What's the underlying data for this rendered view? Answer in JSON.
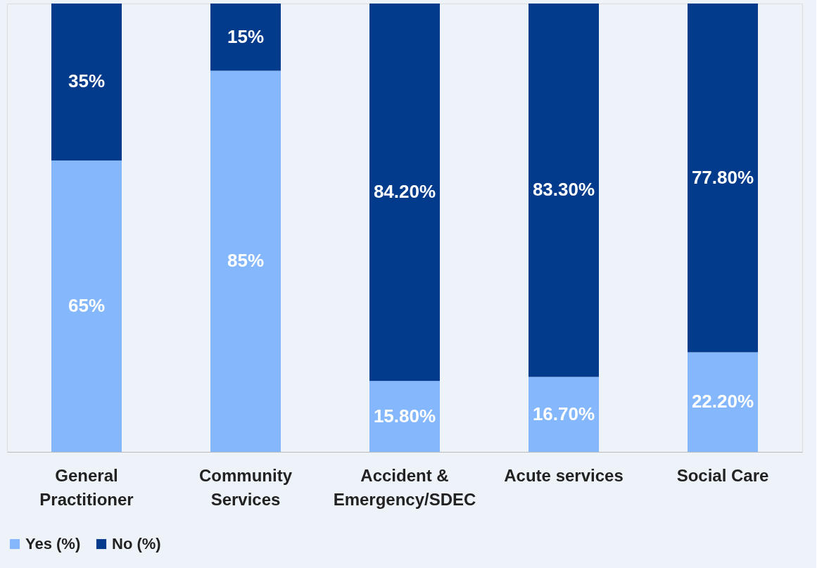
{
  "chart_data": {
    "type": "bar",
    "stacked": true,
    "categories": [
      "General Practitioner",
      "Community Services",
      "Accident & Emergency/SDEC",
      "Acute services",
      "Social Care"
    ],
    "series": [
      {
        "name": "Yes (%)",
        "color": "#85b7fc",
        "values": [
          65,
          85,
          15.8,
          16.7,
          22.2
        ],
        "value_labels": [
          "65%",
          "85%",
          "15.80%",
          "16.70%",
          "22.20%"
        ]
      },
      {
        "name": "No (%)",
        "color": "#023a8c",
        "values": [
          35,
          15,
          84.2,
          83.3,
          77.8
        ],
        "value_labels": [
          "35%",
          "15%",
          "84.20%",
          "83.30%",
          "77.80%"
        ]
      }
    ],
    "ylim": [
      0,
      100
    ],
    "tick_labels": "x",
    "legend": "bottom",
    "grid": false
  }
}
